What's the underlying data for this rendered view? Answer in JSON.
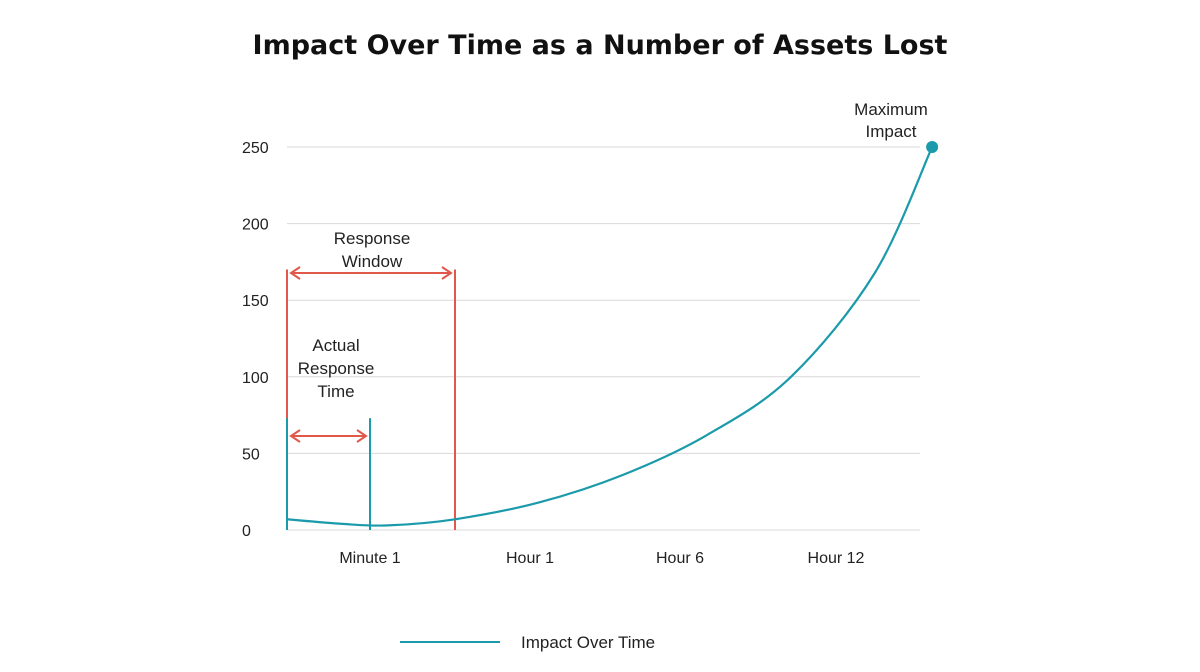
{
  "chart_data": {
    "type": "line",
    "title": "Impact Over Time as a Number of Assets Lost",
    "xlabel": "",
    "ylabel": "",
    "ylim": [
      0,
      250
    ],
    "yticks": [
      0,
      50,
      100,
      150,
      200,
      250
    ],
    "x_categories": [
      "Minute 1",
      "Hour 1",
      "Hour 6",
      "Hour 12"
    ],
    "grid": true,
    "series": [
      {
        "name": "Impact Over Time",
        "color": "#1a9aaa",
        "points": [
          {
            "x": 0.0,
            "y": 7
          },
          {
            "x": 0.33,
            "y": 4
          },
          {
            "x": 0.6,
            "y": 3
          },
          {
            "x": 1.0,
            "y": 7
          },
          {
            "x": 1.5,
            "y": 18
          },
          {
            "x": 2.0,
            "y": 36
          },
          {
            "x": 2.5,
            "y": 62
          },
          {
            "x": 3.0,
            "y": 100
          },
          {
            "x": 3.5,
            "y": 168
          },
          {
            "x": 3.84,
            "y": 250
          }
        ]
      }
    ],
    "markers": [
      {
        "name": "maximum-impact-point",
        "x": 3.84,
        "y": 250,
        "label": [
          "Maximum",
          "Impact"
        ]
      }
    ],
    "vertical_lines": [
      {
        "name": "response-start-red-line",
        "x": 0.0,
        "y_top": 170,
        "color": "#e0584a"
      },
      {
        "name": "response-window-end-line",
        "x": 1.0,
        "y_top": 170,
        "color": "#e0584a"
      },
      {
        "name": "actual-response-start-line",
        "x": 0.0,
        "y_top": 73,
        "color": "#1a9aaa"
      },
      {
        "name": "actual-response-end-line",
        "x": 0.5,
        "y_top": 73,
        "color": "#1a9aaa"
      }
    ],
    "annotations": [
      {
        "name": "response-window",
        "label": [
          "Response",
          "Window"
        ],
        "x_from": 0.0,
        "x_to": 1.0,
        "y": 165,
        "color": "#e0584a"
      },
      {
        "name": "actual-response-time",
        "label": [
          "Actual",
          "Response",
          "Time"
        ],
        "x_from": 0.0,
        "x_to": 0.5,
        "y": 60,
        "color": "#e0584a"
      }
    ],
    "legend": {
      "position": "bottom-center",
      "items": [
        {
          "label": "Impact Over Time",
          "color": "#1a9aaa"
        }
      ]
    }
  }
}
